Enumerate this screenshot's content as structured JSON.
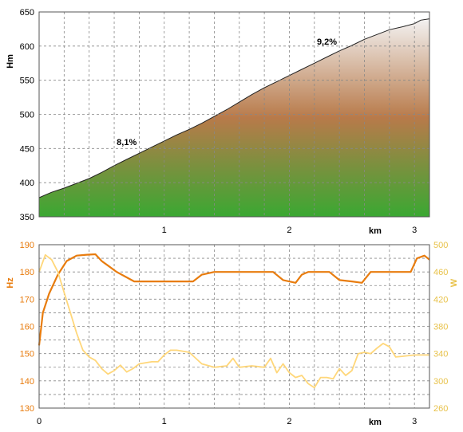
{
  "chart_data": [
    {
      "type": "area",
      "ylabel": "Hm",
      "xlabel": "km",
      "xlim": [
        0,
        3.12
      ],
      "ylim": [
        350,
        650
      ],
      "x_ticks": [
        "1",
        "2",
        "3"
      ],
      "y_ticks": [
        "350",
        "400",
        "450",
        "500",
        "550",
        "600",
        "650"
      ],
      "grid": true,
      "gradient_colors": [
        "#3aa832",
        "#b87a4a",
        "#f3f2f2"
      ],
      "annotations": [
        {
          "text": "8,1%",
          "x": 0.7,
          "y": 455
        },
        {
          "text": "9,2%",
          "x": 2.3,
          "y": 602
        }
      ],
      "series": [
        {
          "x": [
            0,
            0.05,
            0.1,
            0.2,
            0.3,
            0.4,
            0.5,
            0.6,
            0.7,
            0.8,
            0.9,
            1.0,
            1.1,
            1.2,
            1.3,
            1.4,
            1.5,
            1.6,
            1.7,
            1.8,
            1.9,
            2.0,
            2.1,
            2.2,
            2.3,
            2.4,
            2.5,
            2.6,
            2.7,
            2.8,
            2.9,
            3.0,
            3.05,
            3.12
          ],
          "y": [
            378,
            382,
            386,
            392,
            399,
            406,
            415,
            425,
            434,
            443,
            452,
            461,
            470,
            478,
            487,
            497,
            507,
            518,
            529,
            539,
            548,
            557,
            566,
            575,
            584,
            593,
            601,
            610,
            617,
            624,
            628,
            633,
            638,
            640
          ]
        }
      ]
    },
    {
      "type": "line",
      "ylabel": "Hz",
      "ylabel_right": "W",
      "xlabel": "km",
      "xlim": [
        0,
        3.12
      ],
      "ylim": [
        130,
        190
      ],
      "ylim_right": [
        260,
        500
      ],
      "x_ticks": [
        "0",
        "1",
        "2",
        "3"
      ],
      "y_ticks": [
        "130",
        "140",
        "150",
        "160",
        "170",
        "180",
        "190"
      ],
      "y_ticks_right": [
        "260",
        "300",
        "340",
        "380",
        "420",
        "460",
        "500"
      ],
      "grid": true,
      "series": [
        {
          "axis": "left",
          "color": "#e87c0e",
          "x": [
            0,
            0.03,
            0.08,
            0.15,
            0.22,
            0.3,
            0.38,
            0.45,
            0.5,
            0.56,
            0.62,
            0.7,
            0.76,
            0.85,
            1.0,
            1.1,
            1.23,
            1.3,
            1.4,
            1.5,
            1.6,
            1.7,
            1.8,
            1.87,
            1.95,
            2.05,
            2.1,
            2.15,
            2.25,
            2.32,
            2.4,
            2.5,
            2.58,
            2.65,
            2.72,
            2.8,
            2.9,
            2.97,
            3.02,
            3.08,
            3.12
          ],
          "y": [
            153,
            165,
            172,
            179,
            184,
            186,
            186.3,
            186.5,
            184,
            182,
            180,
            178,
            176.5,
            176.5,
            176.5,
            176.5,
            176.5,
            179,
            180,
            180,
            180,
            180,
            180,
            180,
            177,
            176,
            179,
            180,
            180,
            180,
            177,
            176.5,
            176,
            180,
            180,
            180,
            180,
            180,
            185,
            186,
            184.5
          ]
        },
        {
          "axis": "right",
          "color": "#ffd77a",
          "x": [
            0,
            0.05,
            0.1,
            0.15,
            0.2,
            0.25,
            0.3,
            0.35,
            0.4,
            0.45,
            0.5,
            0.55,
            0.6,
            0.65,
            0.7,
            0.75,
            0.8,
            0.9,
            0.95,
            1.0,
            1.05,
            1.1,
            1.2,
            1.3,
            1.4,
            1.5,
            1.55,
            1.6,
            1.7,
            1.8,
            1.85,
            1.9,
            1.95,
            2.0,
            2.05,
            2.1,
            2.15,
            2.2,
            2.25,
            2.3,
            2.35,
            2.4,
            2.45,
            2.5,
            2.55,
            2.6,
            2.65,
            2.7,
            2.75,
            2.8,
            2.85,
            2.9,
            3.0,
            3.12
          ],
          "y": [
            460,
            485,
            478,
            460,
            430,
            400,
            370,
            345,
            335,
            330,
            318,
            310,
            315,
            323,
            313,
            318,
            325,
            328,
            328,
            338,
            345,
            345,
            342,
            325,
            320,
            322,
            333,
            320,
            322,
            320,
            333,
            312,
            325,
            312,
            305,
            308,
            296,
            290,
            305,
            305,
            303,
            318,
            308,
            315,
            340,
            342,
            340,
            348,
            355,
            350,
            335,
            336,
            338,
            338
          ]
        }
      ]
    }
  ]
}
